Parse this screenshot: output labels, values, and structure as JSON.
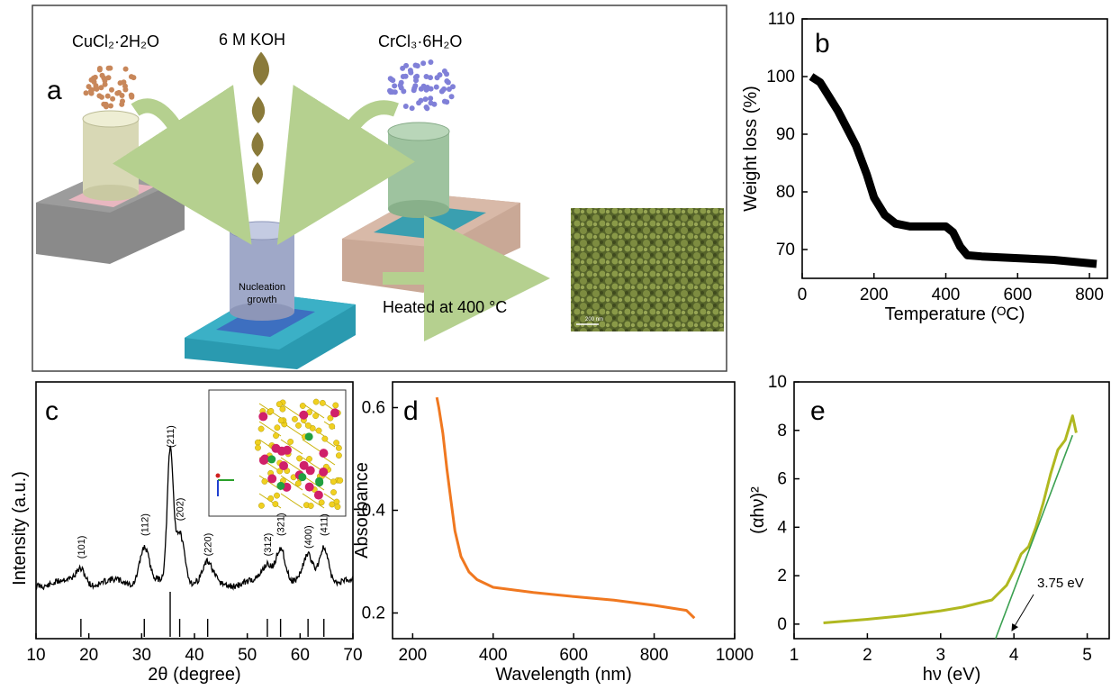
{
  "panel_a": {
    "letter": "a",
    "reagent_cu": "CuCl₂·2H₂O",
    "reagent_koh": "6 M KOH",
    "reagent_cr": "CrCl₃·6H₂O",
    "vessel_label_1": "Nucleation",
    "vessel_label_2": "growth",
    "process": "Heated at 400 °C",
    "sem_scale": "200 nm",
    "colors": {
      "cu_particles": "#c8875a",
      "cr_particles": "#8080d8",
      "koh_drop": "#8a7a3a",
      "arrow": "#b5d08f",
      "sem": "#6b7a35"
    }
  },
  "chart_data": [
    {
      "panel": "b",
      "type": "line",
      "xlabel": "Temperature (ᴼC)",
      "ylabel": "Weight loss (%)",
      "xlim": [
        0,
        850
      ],
      "ylim": [
        65,
        110
      ],
      "xticks": [
        0,
        200,
        400,
        600,
        800
      ],
      "yticks": [
        70,
        80,
        90,
        100,
        110
      ],
      "color": "#000000",
      "series": [
        {
          "x": [
            25,
            50,
            100,
            150,
            180,
            200,
            230,
            260,
            300,
            350,
            400,
            420,
            440,
            460,
            500,
            600,
            700,
            820
          ],
          "y": [
            100,
            99,
            94,
            88,
            83,
            79,
            76,
            74.5,
            74,
            74,
            74,
            73,
            70.5,
            69,
            68.8,
            68.5,
            68.2,
            67.5
          ]
        }
      ]
    },
    {
      "panel": "c",
      "type": "line",
      "xlabel": "2θ (degree)",
      "ylabel": "Intensity (a.u.)",
      "xlim": [
        10,
        70
      ],
      "xticks": [
        10,
        20,
        30,
        40,
        50,
        60,
        70
      ],
      "color": "#000000",
      "peaks": [
        {
          "x": 18.5,
          "label": "(101)",
          "h": 0.12
        },
        {
          "x": 30.5,
          "label": "(112)",
          "h": 0.3
        },
        {
          "x": 35.4,
          "label": "(211)",
          "h": 1.0
        },
        {
          "x": 37.2,
          "label": "(202)",
          "h": 0.42
        },
        {
          "x": 42.5,
          "label": "(220)",
          "h": 0.14
        },
        {
          "x": 53.8,
          "label": "(312)",
          "h": 0.14
        },
        {
          "x": 56.3,
          "label": "(321)",
          "h": 0.3
        },
        {
          "x": 61.5,
          "label": "(400)",
          "h": 0.2
        },
        {
          "x": 64.5,
          "label": "(411)",
          "h": 0.3
        }
      ],
      "reference_lines": [
        18.5,
        30.5,
        35.4,
        37.2,
        42.5,
        53.8,
        56.3,
        61.5,
        64.5
      ]
    },
    {
      "panel": "d",
      "type": "line",
      "xlabel": "Wavelength (nm)",
      "ylabel": "Absorbance",
      "xlim": [
        150,
        1000
      ],
      "ylim": [
        0.15,
        0.65
      ],
      "xticks": [
        200,
        400,
        600,
        800,
        1000
      ],
      "yticks": [
        0.2,
        0.4,
        0.6
      ],
      "color": "#f07820",
      "series": [
        {
          "x": [
            260,
            265,
            275,
            285,
            295,
            305,
            320,
            340,
            360,
            400,
            500,
            600,
            700,
            800,
            880,
            900
          ],
          "y": [
            0.62,
            0.6,
            0.55,
            0.48,
            0.42,
            0.36,
            0.31,
            0.28,
            0.265,
            0.25,
            0.24,
            0.232,
            0.225,
            0.215,
            0.205,
            0.19
          ]
        }
      ]
    },
    {
      "panel": "e",
      "type": "line",
      "xlabel": "hν (eV)",
      "ylabel": "(αhν)²",
      "xlim": [
        1,
        5.3
      ],
      "ylim": [
        -0.6,
        10
      ],
      "xticks": [
        1,
        2,
        3,
        4,
        5
      ],
      "yticks": [
        0,
        2,
        4,
        6,
        8,
        10
      ],
      "colors": {
        "data": "#b0b820",
        "fit": "#3aa050"
      },
      "annotation": "3.75 eV",
      "series": [
        {
          "x": [
            1.4,
            2.0,
            2.5,
            3.0,
            3.3,
            3.5,
            3.7,
            3.9,
            4.0,
            4.1,
            4.2,
            4.3,
            4.4,
            4.5,
            4.6,
            4.7,
            4.8,
            4.85
          ],
          "y": [
            0.05,
            0.2,
            0.35,
            0.55,
            0.7,
            0.85,
            1.0,
            1.6,
            2.2,
            2.9,
            3.2,
            4.0,
            5.0,
            6.2,
            7.2,
            7.6,
            8.6,
            7.9
          ]
        }
      ],
      "fit_line": {
        "x": [
          3.75,
          4.8
        ],
        "y": [
          -0.6,
          7.8
        ]
      }
    }
  ]
}
